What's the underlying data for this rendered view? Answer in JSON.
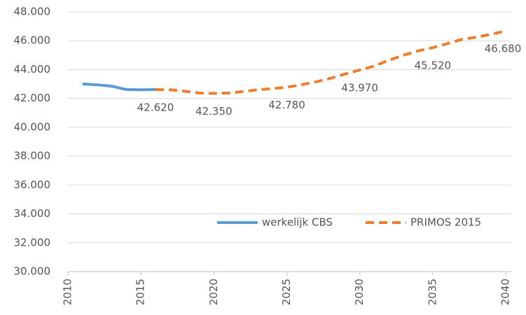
{
  "chart_data": {
    "type": "line",
    "x": [
      2011,
      2012,
      2013,
      2014,
      2015,
      2016,
      2017,
      2018,
      2019,
      2020,
      2021,
      2022,
      2023,
      2024,
      2025,
      2026,
      2027,
      2028,
      2029,
      2030,
      2031,
      2032,
      2033,
      2034,
      2035,
      2036,
      2037,
      2038,
      2039,
      2040
    ],
    "series": [
      {
        "name": "werkelijk CBS",
        "color": "#5b9bd5",
        "dashed": false,
        "values": [
          43000,
          42950,
          42850,
          42620,
          42600,
          42620,
          null,
          null,
          null,
          null,
          null,
          null,
          null,
          null,
          null,
          null,
          null,
          null,
          null,
          null,
          null,
          null,
          null,
          null,
          null,
          null,
          null,
          null,
          null,
          null
        ]
      },
      {
        "name": "PRIMOS 2015",
        "color": "#ed7d31",
        "dashed": true,
        "values": [
          null,
          null,
          null,
          null,
          null,
          42620,
          42600,
          42500,
          42380,
          42350,
          42380,
          42480,
          42600,
          42680,
          42780,
          42950,
          43150,
          43400,
          43700,
          43970,
          44250,
          44650,
          45000,
          45300,
          45520,
          45800,
          46100,
          46250,
          46450,
          46680
        ],
        "value_labels": [
          null,
          null,
          null,
          null,
          null,
          "42.620",
          null,
          null,
          null,
          "42.350",
          null,
          null,
          null,
          null,
          "42.780",
          null,
          null,
          null,
          null,
          "43.970",
          null,
          null,
          null,
          null,
          "45.520",
          null,
          null,
          null,
          null,
          "46.680"
        ]
      }
    ],
    "xlim": [
      2010,
      2040
    ],
    "xticks": [
      2010,
      2015,
      2020,
      2025,
      2030,
      2035,
      2040
    ],
    "ylim": [
      30000,
      48000
    ],
    "yticks": [
      {
        "value": 30000,
        "label": "30.000"
      },
      {
        "value": 32000,
        "label": "32.000"
      },
      {
        "value": 34000,
        "label": "34.000"
      },
      {
        "value": 36000,
        "label": "36.000"
      },
      {
        "value": 38000,
        "label": "38.000"
      },
      {
        "value": 40000,
        "label": "40.000"
      },
      {
        "value": 42000,
        "label": "42.000"
      },
      {
        "value": 44000,
        "label": "44.000"
      },
      {
        "value": 46000,
        "label": "46.000"
      },
      {
        "value": 48000,
        "label": "48.000"
      }
    ],
    "grid": true,
    "legend": "lower right"
  }
}
